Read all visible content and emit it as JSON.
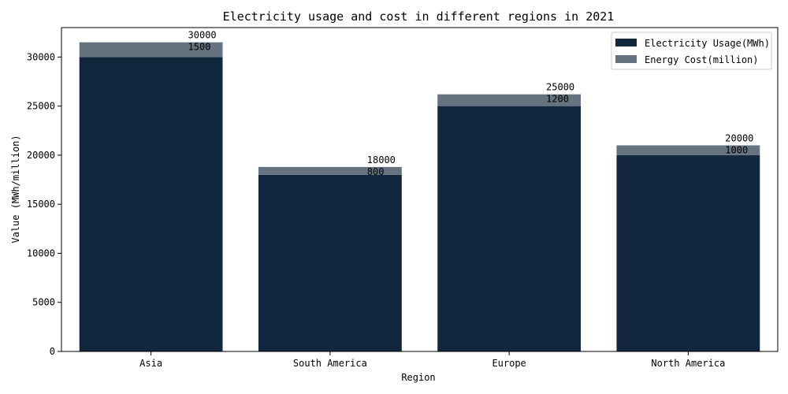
{
  "chart_data": {
    "type": "bar",
    "stacked": true,
    "title": "Electricity usage and cost in different regions in 2021",
    "xlabel": "Region",
    "ylabel": "Value (MWh/million)",
    "categories": [
      "Asia",
      "South America",
      "Europe",
      "North America"
    ],
    "series": [
      {
        "name": "Electricity Usage(MWh)",
        "values": [
          30000,
          18000,
          25000,
          20000
        ],
        "color": "#12263d"
      },
      {
        "name": "Energy Cost(million)",
        "values": [
          1500,
          800,
          1200,
          1000
        ],
        "color": "#657280"
      }
    ],
    "ylim": [
      0,
      33000
    ],
    "yticks": [
      0,
      5000,
      10000,
      15000,
      20000,
      25000,
      30000
    ],
    "grid": false,
    "legend_position": "top-right"
  }
}
